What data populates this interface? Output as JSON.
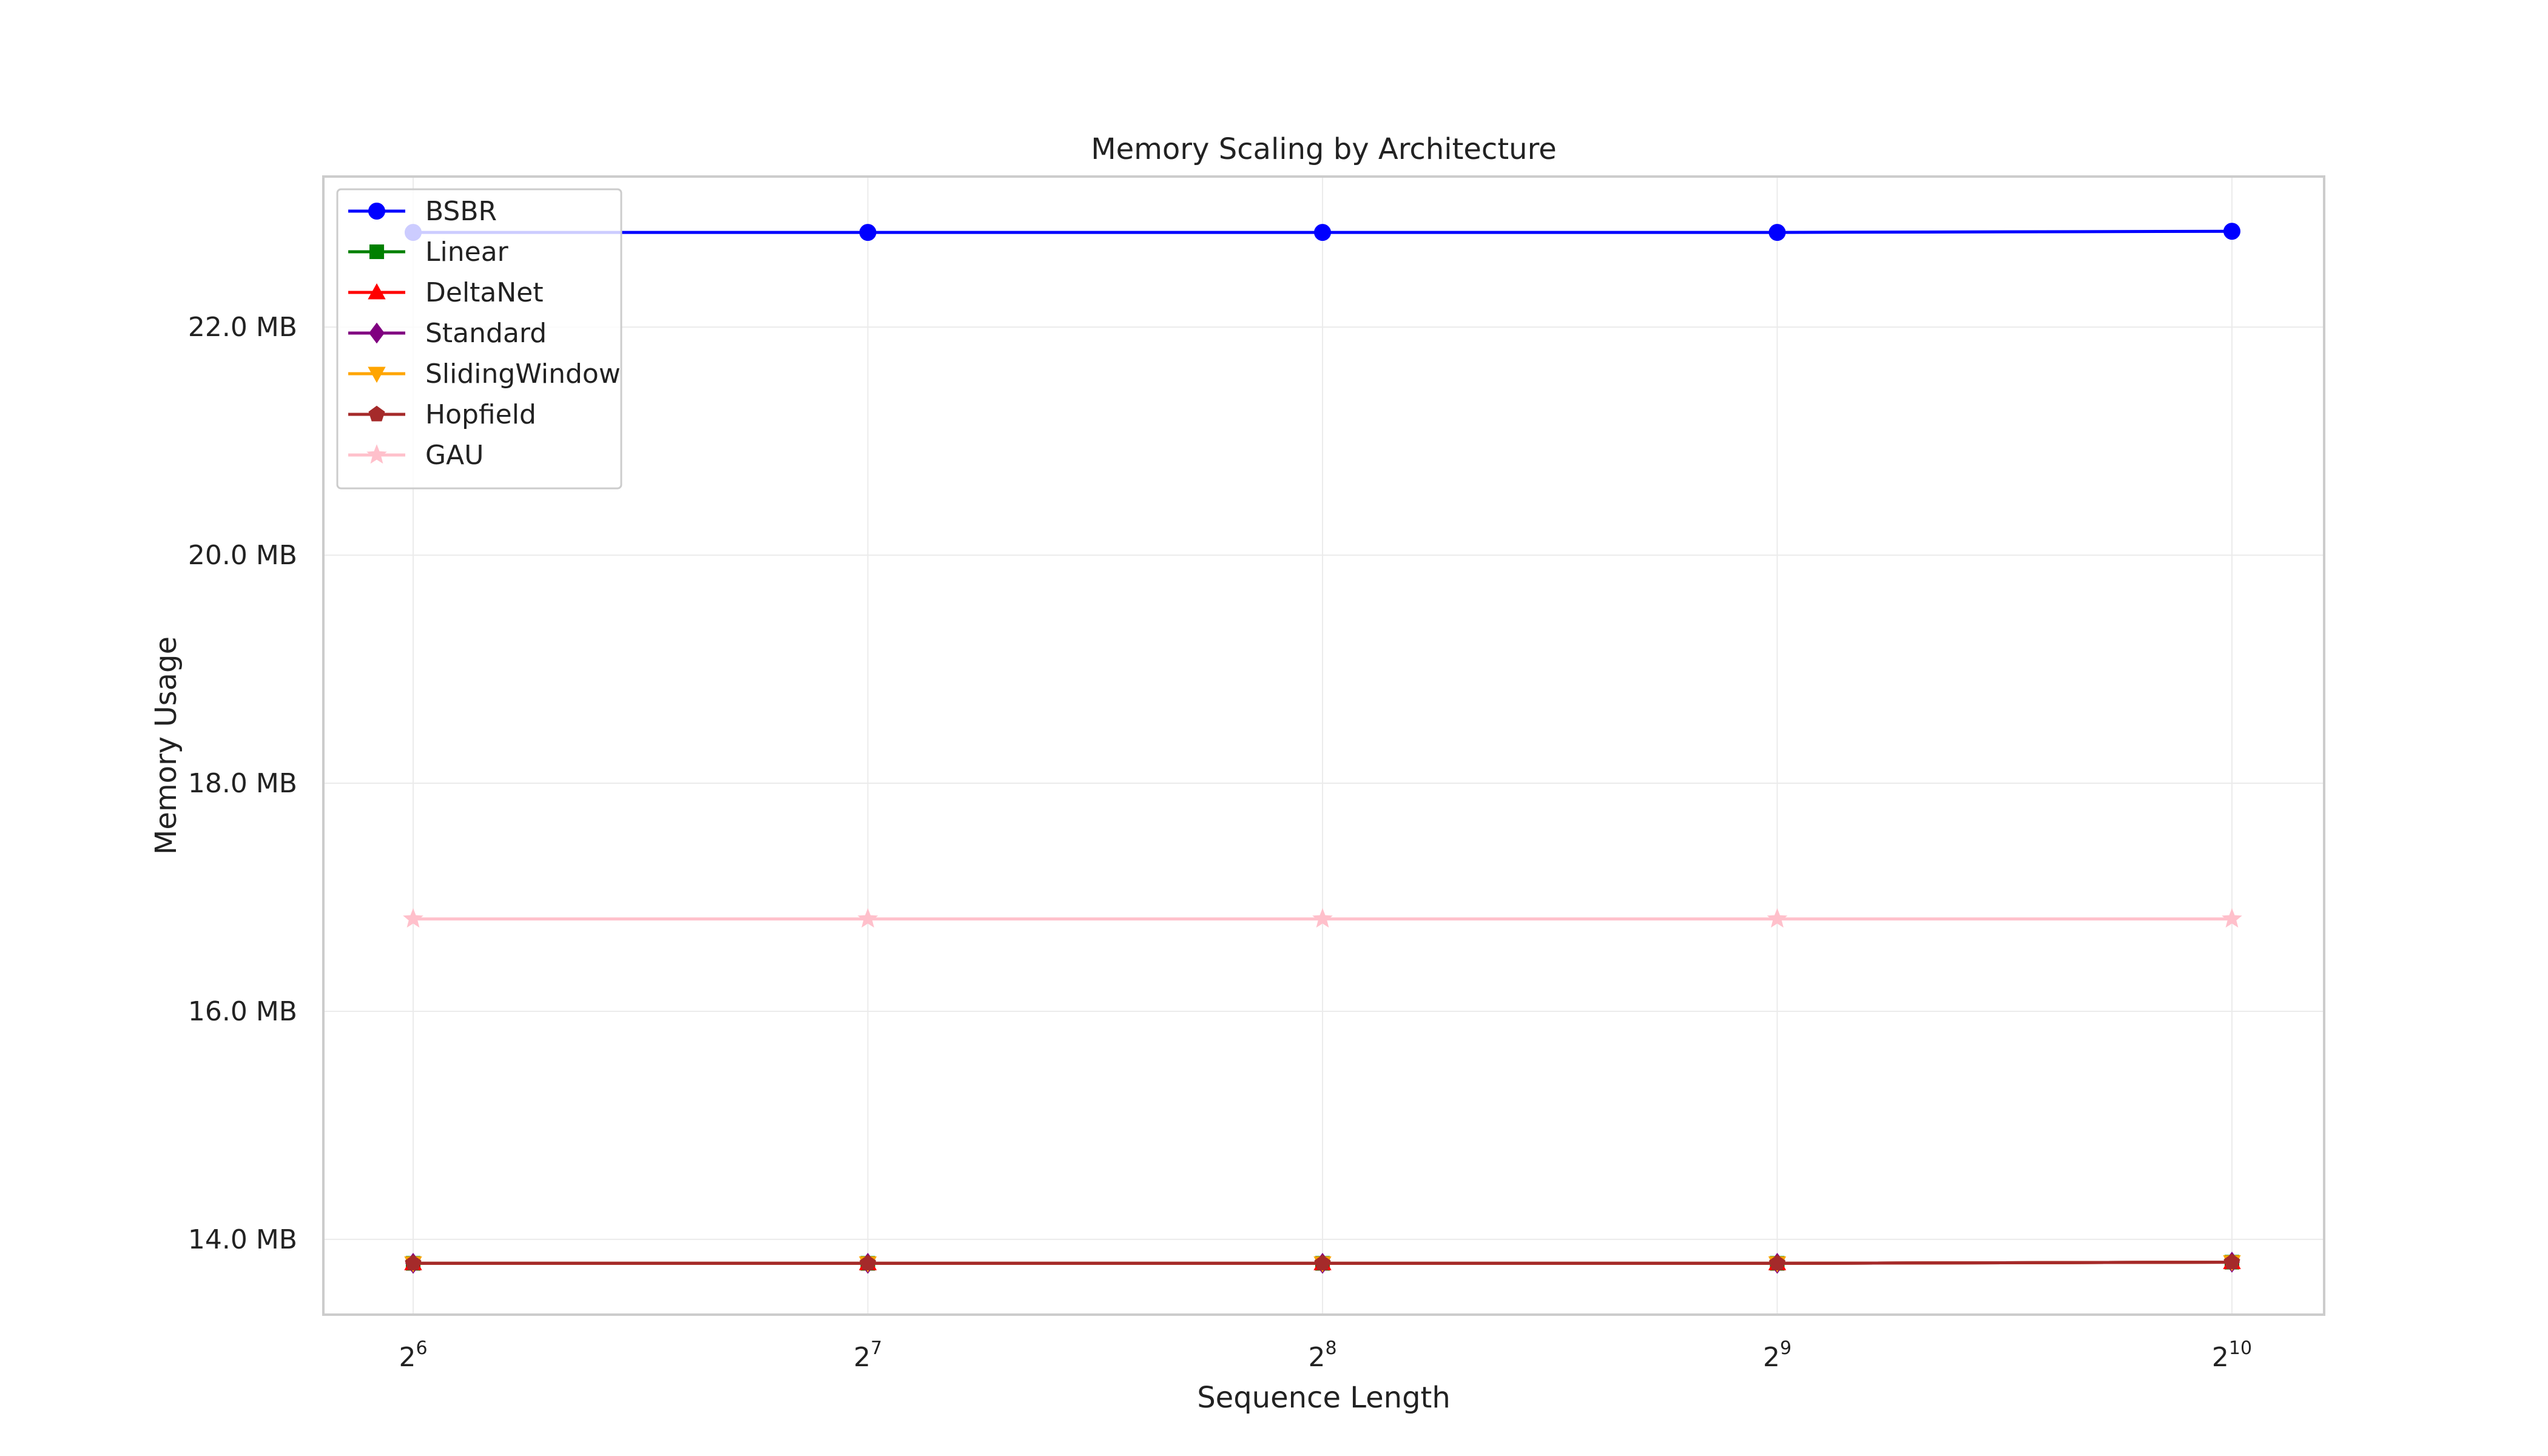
{
  "chart_data": {
    "type": "line",
    "title": "Memory Scaling by Architecture",
    "xlabel": "Sequence Length",
    "ylabel": "Memory Usage",
    "x": [
      64,
      128,
      256,
      512,
      1024
    ],
    "x_scale": "log2",
    "x_tick_labels": [
      {
        "base": "2",
        "exp": "6"
      },
      {
        "base": "2",
        "exp": "7"
      },
      {
        "base": "2",
        "exp": "8"
      },
      {
        "base": "2",
        "exp": "9"
      },
      {
        "base": "2",
        "exp": "10"
      }
    ],
    "y_ticks": [
      14.0,
      16.0,
      18.0,
      20.0,
      22.0
    ],
    "y_tick_labels": [
      "14.0 MB",
      "16.0 MB",
      "18.0 MB",
      "20.0 MB",
      "22.0 MB"
    ],
    "ylim": [
      13.34,
      23.32
    ],
    "grid": true,
    "legend_position": "upper-left",
    "series": [
      {
        "name": "BSBR",
        "color": "#0000ff",
        "marker": "circle",
        "values": [
          22.83,
          22.83,
          22.83,
          22.83,
          22.84
        ]
      },
      {
        "name": "Linear",
        "color": "#008000",
        "marker": "square",
        "values": [
          13.79,
          13.79,
          13.79,
          13.79,
          13.8
        ]
      },
      {
        "name": "DeltaNet",
        "color": "#ff0000",
        "marker": "triangle-up",
        "values": [
          13.79,
          13.79,
          13.79,
          13.79,
          13.8
        ]
      },
      {
        "name": "Standard",
        "color": "#800080",
        "marker": "diamond",
        "values": [
          13.79,
          13.79,
          13.79,
          13.79,
          13.8
        ]
      },
      {
        "name": "SlidingWindow",
        "color": "#ffa500",
        "marker": "triangle-down",
        "values": [
          13.79,
          13.79,
          13.79,
          13.79,
          13.8
        ]
      },
      {
        "name": "Hopfield",
        "color": "#a52a2a",
        "marker": "pentagon",
        "values": [
          13.79,
          13.79,
          13.79,
          13.79,
          13.8
        ]
      },
      {
        "name": "GAU",
        "color": "#ffc0cb",
        "marker": "star",
        "values": [
          16.81,
          16.81,
          16.81,
          16.81,
          16.81
        ]
      }
    ]
  }
}
